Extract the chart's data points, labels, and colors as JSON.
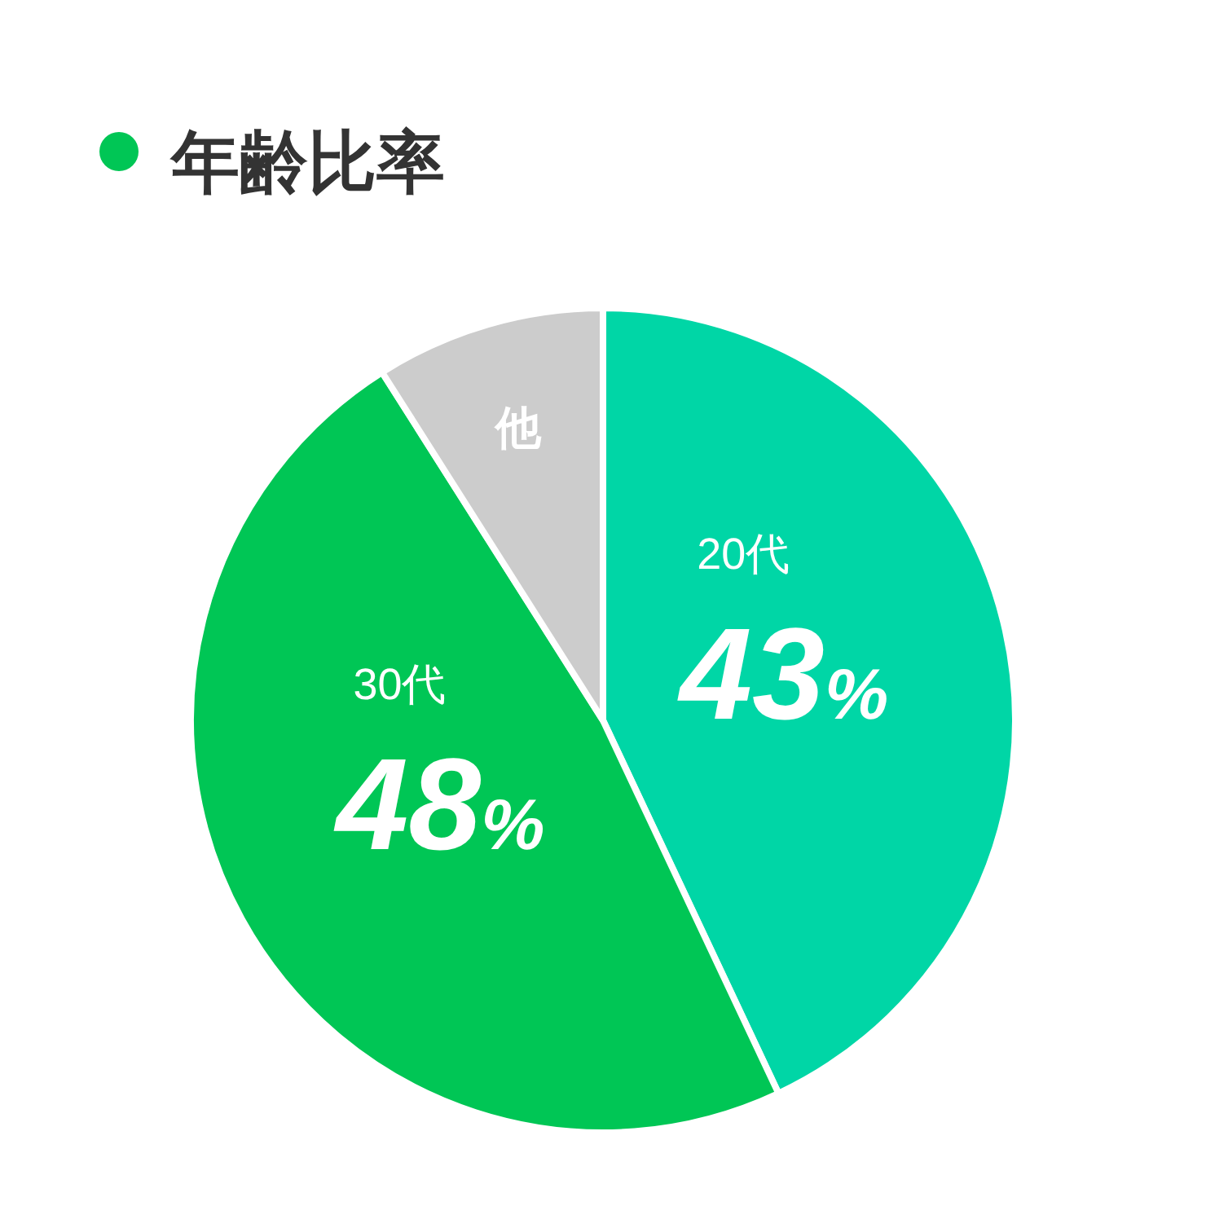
{
  "chart_data": {
    "type": "pie",
    "title": "年齢比率",
    "categories": [
      "20代",
      "30代",
      "他"
    ],
    "values": [
      43,
      48,
      9
    ],
    "colors": [
      "#00d6a6",
      "#00c655",
      "#cccccc"
    ],
    "value_labels": [
      "43%",
      "48%",
      null
    ]
  }
}
